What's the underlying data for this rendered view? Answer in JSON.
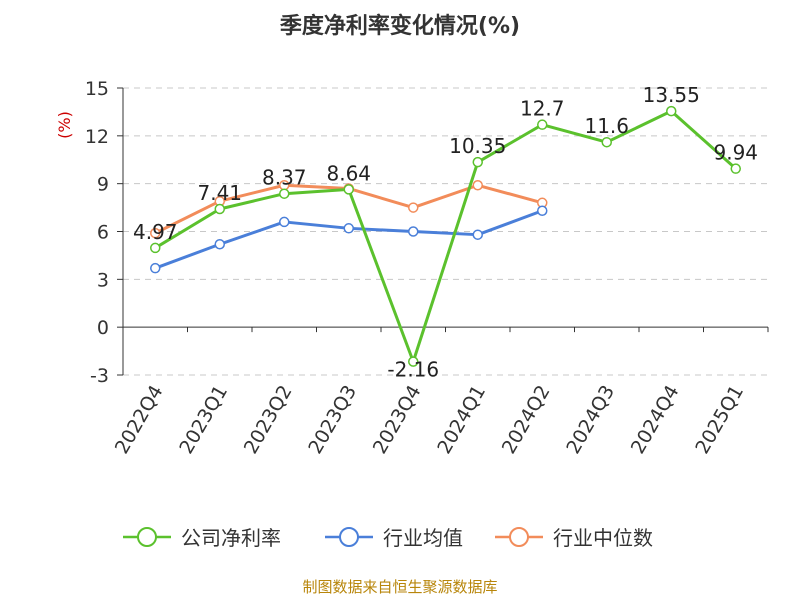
{
  "chart_data": {
    "type": "line",
    "title": "季度净利率变化情况(%)",
    "ylabel": "(%)",
    "xlabel": "",
    "categories": [
      "2022Q4",
      "2023Q1",
      "2023Q2",
      "2023Q3",
      "2023Q4",
      "2024Q1",
      "2024Q2",
      "2024Q3",
      "2024Q4",
      "2025Q1"
    ],
    "ylim": [
      -3,
      15
    ],
    "yticks": [
      -3,
      0,
      3,
      6,
      9,
      12,
      15
    ],
    "grid": "horizontal dashed",
    "legend_position": "bottom",
    "series": [
      {
        "name": "公司净利率",
        "color": "#5bc12d",
        "values": [
          4.97,
          7.41,
          8.37,
          8.64,
          -2.16,
          10.35,
          12.7,
          11.6,
          13.55,
          9.94
        ],
        "labels": [
          "4.97",
          "7.41",
          "8.37",
          "8.64",
          "-2.16",
          "10.35",
          "12.7",
          "11.6",
          "13.55",
          "9.94"
        ]
      },
      {
        "name": "行业均值",
        "color": "#4a7fd9",
        "values": [
          3.7,
          5.2,
          6.6,
          6.2,
          6.0,
          5.8,
          7.3,
          null,
          null,
          null
        ]
      },
      {
        "name": "行业中位数",
        "color": "#f28c5a",
        "values": [
          5.9,
          7.9,
          8.9,
          8.7,
          7.5,
          8.9,
          7.8,
          null,
          null,
          null
        ]
      }
    ],
    "source": "制图数据来自恒生聚源数据库"
  }
}
